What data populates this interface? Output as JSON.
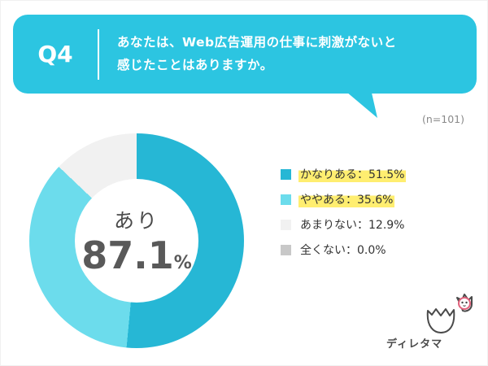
{
  "colors": {
    "accent": "#2cc5e1"
  },
  "header": {
    "q_label": "Q4",
    "question_line1": "あなたは、Web広告運用の仕事に刺激がないと",
    "question_line2": "感じたことはありますか。",
    "sample_size": "(n=101)"
  },
  "chart_data": {
    "type": "pie",
    "donut": true,
    "title": "あなたは、Web広告運用の仕事に刺激がないと感じたことはありますか。",
    "categories": [
      "かなりある",
      "ややある",
      "あまりない",
      "全くない"
    ],
    "values": [
      51.5,
      35.6,
      12.9,
      0.0
    ],
    "colors": [
      "#26b7d5",
      "#6cdcec",
      "#f1f1f1",
      "#c8c8c8"
    ],
    "center_label": "あり",
    "center_value": "87.1",
    "center_unit": "%",
    "legend_position": "right"
  },
  "legend": {
    "items": [
      {
        "label": "かなりある：51.5%",
        "color": "#26b7d5",
        "highlight": true
      },
      {
        "label": "ややある：35.6%",
        "color": "#6cdcec",
        "highlight": true
      },
      {
        "label": "あまりない：12.9%",
        "color": "#f1f1f1",
        "highlight": false
      },
      {
        "label": "全くない：0.0%",
        "color": "#c8c8c8",
        "highlight": false
      }
    ]
  },
  "footer": {
    "brand": "ディレタマ"
  }
}
